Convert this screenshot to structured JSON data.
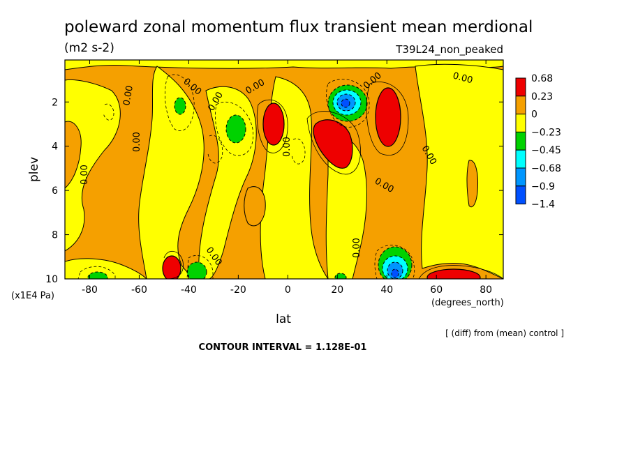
{
  "chart_data": {
    "type": "heatmap",
    "title": "poleward zonal momentum flux transient mean merdional",
    "units": "(m2 s-2)",
    "experiment": "T39L24_non_peaked",
    "xlabel": "lat",
    "xunits": "(degrees_north)",
    "ylabel": "plev",
    "yunits": "(x1E4 Pa)",
    "xlim": [
      -90,
      87
    ],
    "ylim": [
      0.1,
      10
    ],
    "y_inverted": true,
    "x_ticks": [
      -80,
      -60,
      -40,
      -20,
      0,
      20,
      40,
      60,
      80
    ],
    "y_ticks": [
      2,
      4,
      6,
      8,
      10
    ],
    "x_tick_labels": [
      "-80",
      "-60",
      "-40",
      "-20",
      "0",
      "20",
      "40",
      "60",
      "80"
    ],
    "y_tick_labels": [
      "2",
      "4",
      "6",
      "8",
      "10"
    ],
    "contour_label": "0.00",
    "note": "[ (diff) from (mean) control ]",
    "contour_interval": "CONTOUR INTERVAL = 1.128E-01",
    "legend_position": "right",
    "colorbar": {
      "labels": [
        "0.68",
        "0.23",
        "0",
        "−0.23",
        "−0.45",
        "−0.68",
        "−0.9",
        "−1.4"
      ],
      "colors": [
        "#ee0000",
        "#f5a000",
        "#ffff00",
        "#00d200",
        "#00ffff",
        "#0096ff",
        "#0050ff"
      ],
      "levels": [
        0.68,
        0.23,
        0,
        -0.23,
        -0.45,
        -0.68,
        -0.9,
        -1.4
      ]
    },
    "features": [
      {
        "kind": "positive",
        "level": 0.68,
        "lat": -5,
        "plev": 2.8
      },
      {
        "kind": "positive",
        "level": 0.68,
        "lat": 22,
        "plev": 3.6
      },
      {
        "kind": "positive",
        "level": 0.68,
        "lat": 45,
        "plev": 2.6
      },
      {
        "kind": "positive",
        "level": 0.68,
        "lat": -45,
        "plev": 9.6
      },
      {
        "kind": "positive",
        "level": 0.68,
        "lat": 72,
        "plev": 9.8
      },
      {
        "kind": "negative",
        "level": -1.4,
        "lat": 27,
        "plev": 2.0
      },
      {
        "kind": "negative",
        "level": -1.4,
        "lat": 45,
        "plev": 9.6
      },
      {
        "kind": "negative",
        "level": -0.45,
        "lat": -20,
        "plev": 3.2
      },
      {
        "kind": "negative",
        "level": -0.45,
        "lat": -42,
        "plev": 2.1
      },
      {
        "kind": "negative",
        "level": -0.45,
        "lat": -35,
        "plev": 9.7
      },
      {
        "kind": "negative",
        "level": -0.45,
        "lat": -75,
        "plev": 9.8
      },
      {
        "kind": "negative",
        "level": -0.45,
        "lat": 20,
        "plev": 9.9
      }
    ]
  }
}
